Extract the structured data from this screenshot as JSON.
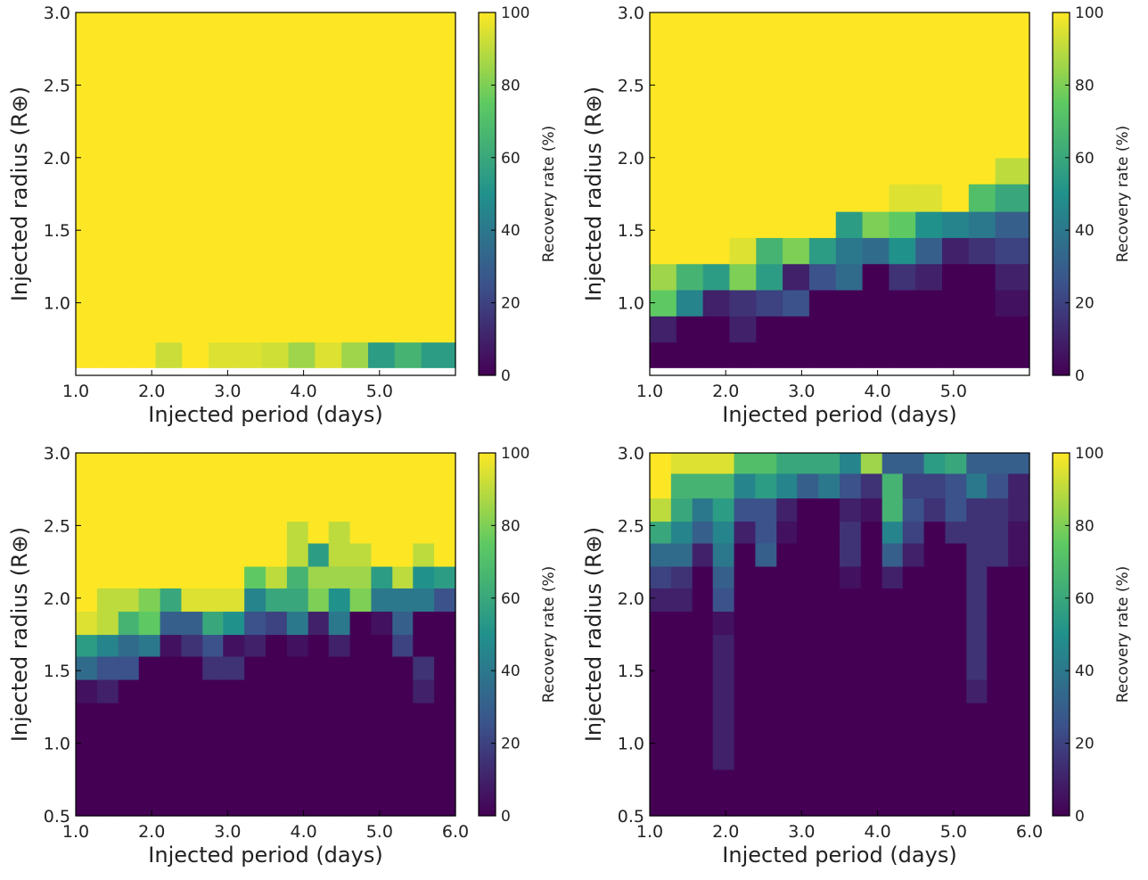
{
  "figure": {
    "colormap": "viridis",
    "colormap_stops": [
      "#440154",
      "#3b528b",
      "#21918c",
      "#5ec962",
      "#fde725"
    ]
  },
  "chart_data": [
    {
      "type": "heatmap",
      "panel": "top-left",
      "xlabel": "Injected period (days)",
      "ylabel": "Injected radius (R⊕)",
      "colorbar_label": "Recovery rate (%)",
      "colorbar_ticks": [
        "0",
        "20",
        "40",
        "60",
        "80",
        "100"
      ],
      "clim": [
        0,
        100
      ],
      "xlim": [
        1.0,
        6.0
      ],
      "ylim": [
        0.5,
        3.0
      ],
      "x_tick_values": [
        1.0,
        2.0,
        3.0,
        4.0,
        5.0
      ],
      "x_tick_labels": [
        "1.0",
        "2.0",
        "3.0",
        "4.0",
        "5.0"
      ],
      "y_tick_values": [
        1.0,
        1.5,
        2.0,
        2.5,
        3.0
      ],
      "y_tick_labels": [
        "1.0",
        "1.5",
        "2.0",
        "2.5",
        "3.0"
      ],
      "x_edges": [
        1.0,
        1.35,
        1.7,
        2.05,
        2.4,
        2.75,
        3.1,
        3.45,
        3.8,
        4.15,
        4.5,
        4.85,
        5.2,
        5.55,
        5.9
      ],
      "y_edges": [
        0.55,
        0.73,
        0.91,
        1.09,
        1.27,
        1.45,
        1.63,
        1.82,
        2.0,
        2.18,
        2.36,
        2.55,
        2.73,
        2.91,
        3.0
      ],
      "values": [
        [
          100,
          100,
          100,
          92,
          100,
          95,
          95,
          93,
          85,
          95,
          85,
          55,
          65,
          55
        ],
        [
          100,
          100,
          100,
          100,
          100,
          100,
          100,
          100,
          100,
          100,
          100,
          100,
          100,
          100
        ],
        [
          100,
          100,
          100,
          100,
          100,
          100,
          100,
          100,
          100,
          100,
          100,
          100,
          100,
          100
        ],
        [
          100,
          100,
          100,
          100,
          100,
          100,
          100,
          100,
          100,
          100,
          100,
          100,
          100,
          100
        ],
        [
          100,
          100,
          100,
          100,
          100,
          100,
          100,
          100,
          100,
          100,
          100,
          100,
          100,
          100
        ],
        [
          100,
          100,
          100,
          100,
          100,
          100,
          100,
          100,
          100,
          100,
          100,
          100,
          100,
          100
        ],
        [
          100,
          100,
          100,
          100,
          100,
          100,
          100,
          100,
          100,
          100,
          100,
          100,
          100,
          100
        ],
        [
          100,
          100,
          100,
          100,
          100,
          100,
          100,
          100,
          100,
          100,
          100,
          100,
          100,
          100
        ],
        [
          100,
          100,
          100,
          100,
          100,
          100,
          100,
          100,
          100,
          100,
          100,
          100,
          100,
          100
        ],
        [
          100,
          100,
          100,
          100,
          100,
          100,
          100,
          100,
          100,
          100,
          100,
          100,
          100,
          100
        ],
        [
          100,
          100,
          100,
          100,
          100,
          100,
          100,
          100,
          100,
          100,
          100,
          100,
          100,
          100
        ],
        [
          100,
          100,
          100,
          100,
          100,
          100,
          100,
          100,
          100,
          100,
          100,
          100,
          100,
          100
        ],
        [
          100,
          100,
          100,
          100,
          100,
          100,
          100,
          100,
          100,
          100,
          100,
          100,
          100,
          100
        ],
        [
          100,
          100,
          100,
          100,
          100,
          100,
          100,
          100,
          100,
          100,
          100,
          100,
          100,
          100
        ]
      ]
    },
    {
      "type": "heatmap",
      "panel": "top-right",
      "xlabel": "Injected period (days)",
      "ylabel": "Injected radius (R⊕)",
      "colorbar_label": "Recovery rate (%)",
      "colorbar_ticks": [
        "0",
        "20",
        "40",
        "60",
        "80",
        "100"
      ],
      "clim": [
        0,
        100
      ],
      "xlim": [
        1.0,
        6.0
      ],
      "ylim": [
        0.5,
        3.0
      ],
      "x_tick_values": [
        1.0,
        2.0,
        3.0,
        4.0,
        5.0
      ],
      "x_tick_labels": [
        "1.0",
        "2.0",
        "3.0",
        "4.0",
        "5.0"
      ],
      "y_tick_values": [
        1.0,
        1.5,
        2.0,
        2.5,
        3.0
      ],
      "y_tick_labels": [
        "1.0",
        "1.5",
        "2.0",
        "2.5",
        "3.0"
      ],
      "x_edges": [
        1.0,
        1.35,
        1.7,
        2.05,
        2.4,
        2.75,
        3.1,
        3.45,
        3.8,
        4.15,
        4.5,
        4.85,
        5.2,
        5.55,
        5.9
      ],
      "y_edges": [
        0.55,
        0.73,
        0.91,
        1.09,
        1.27,
        1.45,
        1.63,
        1.82,
        2.0,
        2.18,
        2.36,
        2.55,
        2.73,
        2.91,
        3.0
      ],
      "values": [
        [
          0,
          0,
          0,
          0,
          0,
          0,
          0,
          0,
          0,
          0,
          0,
          0,
          0,
          0
        ],
        [
          10,
          0,
          0,
          10,
          0,
          0,
          0,
          0,
          0,
          0,
          0,
          0,
          0,
          0
        ],
        [
          75,
          45,
          10,
          15,
          20,
          25,
          0,
          0,
          0,
          0,
          0,
          0,
          0,
          5
        ],
        [
          85,
          65,
          55,
          80,
          55,
          10,
          25,
          35,
          0,
          15,
          10,
          0,
          0,
          10
        ],
        [
          100,
          100,
          100,
          95,
          65,
          80,
          55,
          40,
          35,
          50,
          30,
          10,
          15,
          20
        ],
        [
          100,
          100,
          100,
          100,
          100,
          100,
          100,
          55,
          80,
          75,
          50,
          45,
          40,
          30
        ],
        [
          100,
          100,
          100,
          100,
          100,
          100,
          100,
          100,
          100,
          95,
          95,
          100,
          70,
          60
        ],
        [
          100,
          100,
          100,
          100,
          100,
          100,
          100,
          100,
          100,
          100,
          100,
          100,
          100,
          90
        ],
        [
          100,
          100,
          100,
          100,
          100,
          100,
          100,
          100,
          100,
          100,
          100,
          100,
          100,
          100
        ],
        [
          100,
          100,
          100,
          100,
          100,
          100,
          100,
          100,
          100,
          100,
          100,
          100,
          100,
          100
        ],
        [
          100,
          100,
          100,
          100,
          100,
          100,
          100,
          100,
          100,
          100,
          100,
          100,
          100,
          100
        ],
        [
          100,
          100,
          100,
          100,
          100,
          100,
          100,
          100,
          100,
          100,
          100,
          100,
          100,
          100
        ],
        [
          100,
          100,
          100,
          100,
          100,
          100,
          100,
          100,
          100,
          100,
          100,
          100,
          100,
          100
        ],
        [
          100,
          100,
          100,
          100,
          100,
          100,
          100,
          100,
          100,
          100,
          100,
          100,
          100,
          100
        ]
      ]
    },
    {
      "type": "heatmap",
      "panel": "bottom-left",
      "xlabel": "Injected period (days)",
      "ylabel": "Injected radius (R⊕)",
      "colorbar_label": "Recovery rate (%)",
      "colorbar_ticks": [
        "0",
        "20",
        "40",
        "60",
        "80",
        "100"
      ],
      "clim": [
        0,
        100
      ],
      "xlim": [
        1.0,
        6.0
      ],
      "ylim": [
        0.5,
        3.0
      ],
      "x_tick_values": [
        1.0,
        2.0,
        3.0,
        4.0,
        5.0,
        6.0
      ],
      "x_tick_labels": [
        "1.0",
        "2.0",
        "3.0",
        "4.0",
        "5.0",
        "6.0"
      ],
      "y_tick_values": [
        0.5,
        1.0,
        1.5,
        2.0,
        2.5,
        3.0
      ],
      "y_tick_labels": [
        "0.5",
        "1.0",
        "1.5",
        "2.0",
        "2.5",
        "3.0"
      ],
      "x_edges": [
        1.0,
        1.28,
        1.56,
        1.83,
        2.11,
        2.39,
        2.67,
        2.94,
        3.22,
        3.5,
        3.78,
        4.06,
        4.33,
        4.61,
        4.89,
        5.17,
        5.44,
        5.72,
        6.0
      ],
      "y_edges": [
        0.5,
        1.28,
        1.44,
        1.6,
        1.75,
        1.91,
        2.07,
        2.22,
        2.38,
        2.53,
        3.0
      ],
      "values": [
        [
          0,
          0,
          0,
          0,
          0,
          0,
          0,
          0,
          0,
          0,
          0,
          0,
          0,
          0,
          0,
          0,
          0,
          0
        ],
        [
          5,
          10,
          0,
          0,
          0,
          0,
          0,
          0,
          0,
          0,
          0,
          0,
          0,
          0,
          0,
          0,
          10,
          0
        ],
        [
          35,
          25,
          25,
          0,
          0,
          0,
          15,
          15,
          0,
          0,
          0,
          0,
          0,
          0,
          0,
          0,
          15,
          0
        ],
        [
          55,
          45,
          35,
          40,
          5,
          15,
          25,
          5,
          10,
          0,
          5,
          0,
          10,
          0,
          0,
          20,
          0,
          0
        ],
        [
          95,
          90,
          65,
          75,
          30,
          30,
          60,
          50,
          25,
          20,
          40,
          10,
          40,
          0,
          5,
          30,
          0,
          0
        ],
        [
          100,
          90,
          90,
          80,
          60,
          95,
          95,
          95,
          45,
          60,
          60,
          80,
          50,
          80,
          40,
          40,
          40,
          25
        ],
        [
          100,
          100,
          100,
          100,
          100,
          100,
          100,
          100,
          75,
          90,
          65,
          85,
          85,
          85,
          55,
          90,
          50,
          55
        ],
        [
          100,
          100,
          100,
          100,
          100,
          100,
          100,
          100,
          100,
          100,
          90,
          55,
          90,
          90,
          100,
          100,
          90,
          100
        ],
        [
          100,
          100,
          100,
          100,
          100,
          100,
          100,
          100,
          100,
          100,
          90,
          100,
          90,
          100,
          100,
          100,
          100,
          100
        ],
        [
          100,
          100,
          100,
          100,
          100,
          100,
          100,
          100,
          100,
          100,
          100,
          100,
          100,
          100,
          100,
          100,
          100,
          100
        ]
      ]
    },
    {
      "type": "heatmap",
      "panel": "bottom-right",
      "xlabel": "Injected period (days)",
      "ylabel": "Injected radius (R⊕)",
      "colorbar_label": "Recovery rate (%)",
      "colorbar_ticks": [
        "0",
        "20",
        "40",
        "60",
        "80",
        "100"
      ],
      "clim": [
        0,
        100
      ],
      "xlim": [
        1.0,
        6.0
      ],
      "ylim": [
        0.5,
        3.0
      ],
      "x_tick_values": [
        1.0,
        2.0,
        3.0,
        4.0,
        5.0,
        6.0
      ],
      "x_tick_labels": [
        "1.0",
        "2.0",
        "3.0",
        "4.0",
        "5.0",
        "6.0"
      ],
      "y_tick_values": [
        0.5,
        1.0,
        1.5,
        2.0,
        2.5,
        3.0
      ],
      "y_tick_labels": [
        "0.5",
        "1.0",
        "1.5",
        "2.0",
        "2.5",
        "3.0"
      ],
      "x_edges": [
        1.0,
        1.28,
        1.56,
        1.83,
        2.11,
        2.39,
        2.67,
        2.94,
        3.22,
        3.5,
        3.78,
        4.06,
        4.33,
        4.61,
        4.89,
        5.17,
        5.44,
        5.72,
        6.0
      ],
      "y_edges": [
        0.5,
        0.82,
        1.28,
        1.44,
        1.6,
        1.75,
        1.91,
        2.07,
        2.22,
        2.38,
        2.53,
        2.69,
        2.86,
        3.0
      ],
      "values": [
        [
          0,
          0,
          0,
          0,
          0,
          0,
          0,
          0,
          0,
          0,
          0,
          0,
          0,
          0,
          0,
          0,
          0,
          0
        ],
        [
          0,
          0,
          0,
          10,
          0,
          0,
          0,
          0,
          0,
          0,
          0,
          0,
          0,
          0,
          0,
          0,
          0,
          0
        ],
        [
          0,
          0,
          0,
          10,
          0,
          0,
          0,
          0,
          0,
          0,
          0,
          0,
          0,
          0,
          0,
          10,
          0,
          0
        ],
        [
          0,
          0,
          0,
          10,
          0,
          0,
          0,
          0,
          0,
          0,
          0,
          0,
          0,
          0,
          0,
          15,
          0,
          0
        ],
        [
          0,
          0,
          0,
          10,
          0,
          0,
          0,
          0,
          0,
          0,
          0,
          0,
          0,
          0,
          0,
          15,
          0,
          0
        ],
        [
          0,
          0,
          0,
          5,
          0,
          0,
          0,
          0,
          0,
          0,
          0,
          0,
          0,
          0,
          0,
          15,
          0,
          0
        ],
        [
          10,
          10,
          0,
          25,
          0,
          0,
          0,
          0,
          0,
          0,
          0,
          0,
          0,
          0,
          0,
          15,
          0,
          0
        ],
        [
          20,
          15,
          0,
          30,
          0,
          0,
          0,
          0,
          0,
          5,
          0,
          10,
          0,
          0,
          0,
          15,
          0,
          0
        ],
        [
          35,
          35,
          10,
          40,
          0,
          30,
          0,
          0,
          0,
          15,
          0,
          30,
          10,
          0,
          0,
          15,
          15,
          5
        ],
        [
          60,
          45,
          30,
          45,
          10,
          25,
          5,
          0,
          0,
          15,
          0,
          45,
          20,
          0,
          15,
          15,
          15,
          5
        ],
        [
          90,
          60,
          40,
          55,
          25,
          25,
          10,
          0,
          0,
          10,
          5,
          65,
          25,
          15,
          25,
          15,
          15,
          10
        ],
        [
          100,
          65,
          65,
          65,
          45,
          55,
          45,
          30,
          40,
          25,
          15,
          65,
          20,
          20,
          25,
          40,
          25,
          10
        ],
        [
          100,
          95,
          95,
          95,
          70,
          70,
          60,
          60,
          60,
          45,
          85,
          30,
          30,
          55,
          60,
          30,
          30,
          30
        ]
      ]
    }
  ]
}
